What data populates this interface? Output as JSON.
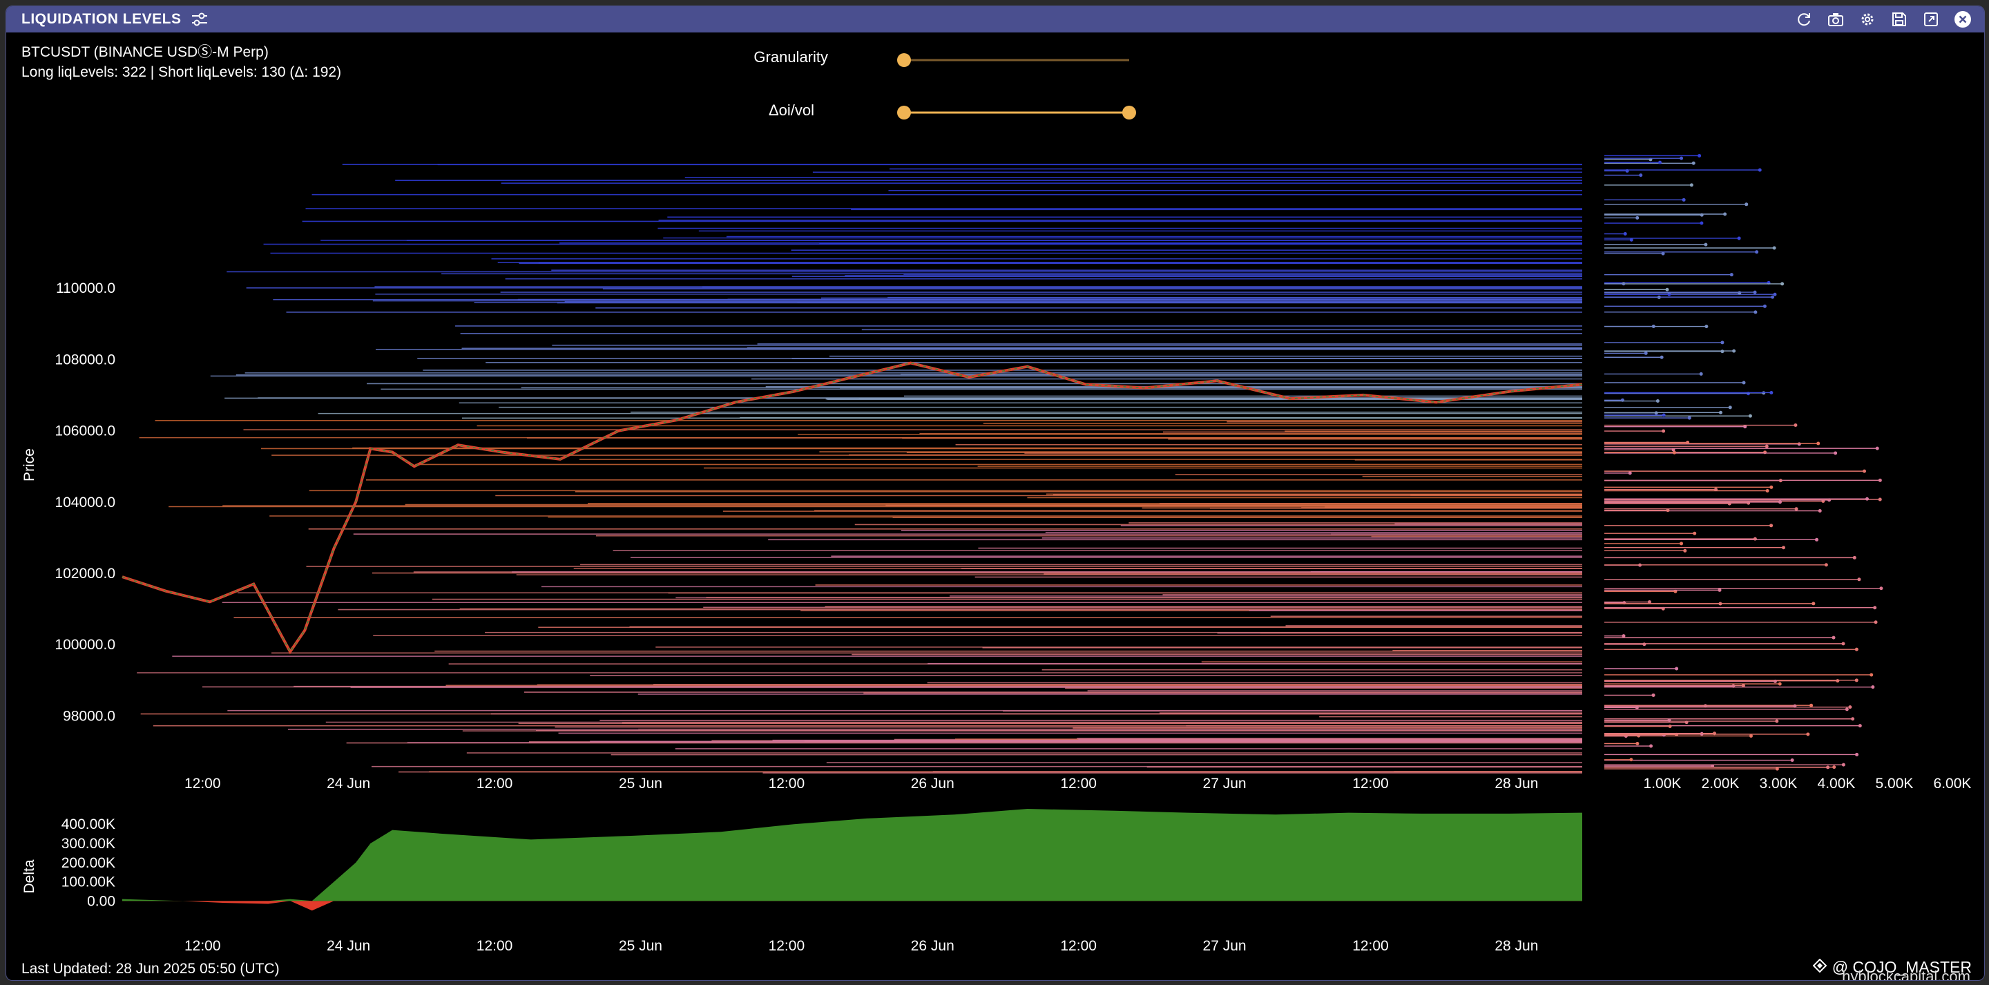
{
  "window": {
    "title": "LIQUIDATION LEVELS"
  },
  "info": {
    "symbol": "BTCUSDT (BINANCE USDⓈ-M Perp)",
    "levels": "Long liqLevels: 322 | Short liqLevels: 130 (Δ: 192)"
  },
  "controls": {
    "granularity_label": "Granularity",
    "granularity_value": 0,
    "oivol_label": "Δoi/vol",
    "oivol_range": [
      0,
      1
    ]
  },
  "footer": {
    "last_updated": "Last Updated: 28 Jun 2025 05:50 (UTC)",
    "author": "@ COJO_MASTER",
    "watermark": "hyblockcapital.com"
  },
  "colors": {
    "accent": "#f0b453",
    "titlebar": "#4a4f8f",
    "short_levels": "#2f3cdd",
    "long_levels": "#e8735a",
    "delta_positive": "#3a8a26",
    "delta_negative": "#e23b2b",
    "candle_up": "#3a8a3a",
    "candle_down": "#d8432e"
  },
  "chart_data": [
    {
      "type": "line",
      "ylabel": "Price",
      "xticks": [
        "12:00",
        "24 Jun",
        "12:00",
        "25 Jun",
        "12:00",
        "26 Jun",
        "12:00",
        "27 Jun",
        "12:00",
        "28 Jun"
      ],
      "yticks": [
        "110000.0",
        "108000.0",
        "106000.0",
        "104000.0",
        "102000.0",
        "100000.0",
        "98000.0"
      ],
      "ylim": [
        96400,
        113800
      ],
      "price_series": {
        "name": "BTCUSDT",
        "x": [
          0.0,
          0.3,
          0.6,
          0.9,
          1.15,
          1.25,
          1.45,
          1.6,
          1.7,
          1.85,
          2.0,
          2.3,
          2.6,
          3.0,
          3.4,
          3.8,
          4.2,
          4.6,
          5.0,
          5.4,
          5.8,
          6.2,
          6.6,
          7.0,
          7.5,
          8.0,
          8.5,
          9.0,
          9.5,
          10.0
        ],
        "values": [
          101900,
          101500,
          101200,
          101700,
          99800,
          100400,
          102700,
          104000,
          105500,
          105400,
          105000,
          105600,
          105400,
          105200,
          106000,
          106300,
          106800,
          107100,
          107500,
          107900,
          107500,
          107800,
          107300,
          107200,
          107400,
          106900,
          107000,
          106800,
          107100,
          107300
        ]
      },
      "short_level_band": [
        106300,
        113800
      ],
      "long_level_band": [
        96400,
        106300
      ]
    },
    {
      "type": "bar",
      "title": "",
      "xlabel": "",
      "ylabel": "",
      "note": "liquidation level size distribution",
      "xticks": [
        "1.00K",
        "2.00K",
        "3.00K",
        "4.00K",
        "5.00K",
        "6.00K"
      ],
      "xlim": [
        0,
        6500
      ]
    },
    {
      "type": "area",
      "ylabel": "Delta",
      "yticks": [
        "400.00K",
        "300.00K",
        "200.00K",
        "100.00K",
        "0.00"
      ],
      "ylim": [
        -60000,
        480000
      ],
      "x": [
        0.0,
        0.4,
        0.7,
        1.0,
        1.15,
        1.3,
        1.45,
        1.6,
        1.7,
        1.85,
        2.2,
        2.8,
        3.5,
        4.1,
        4.6,
        5.1,
        5.7,
        6.2,
        6.8,
        7.3,
        7.9,
        8.4,
        8.9,
        9.5,
        10.0
      ],
      "values": [
        10000,
        0,
        -10000,
        -15000,
        10000,
        -50000,
        100000,
        200000,
        300000,
        370000,
        350000,
        320000,
        340000,
        360000,
        400000,
        430000,
        450000,
        480000,
        470000,
        460000,
        450000,
        460000,
        455000,
        455000,
        460000
      ]
    }
  ]
}
